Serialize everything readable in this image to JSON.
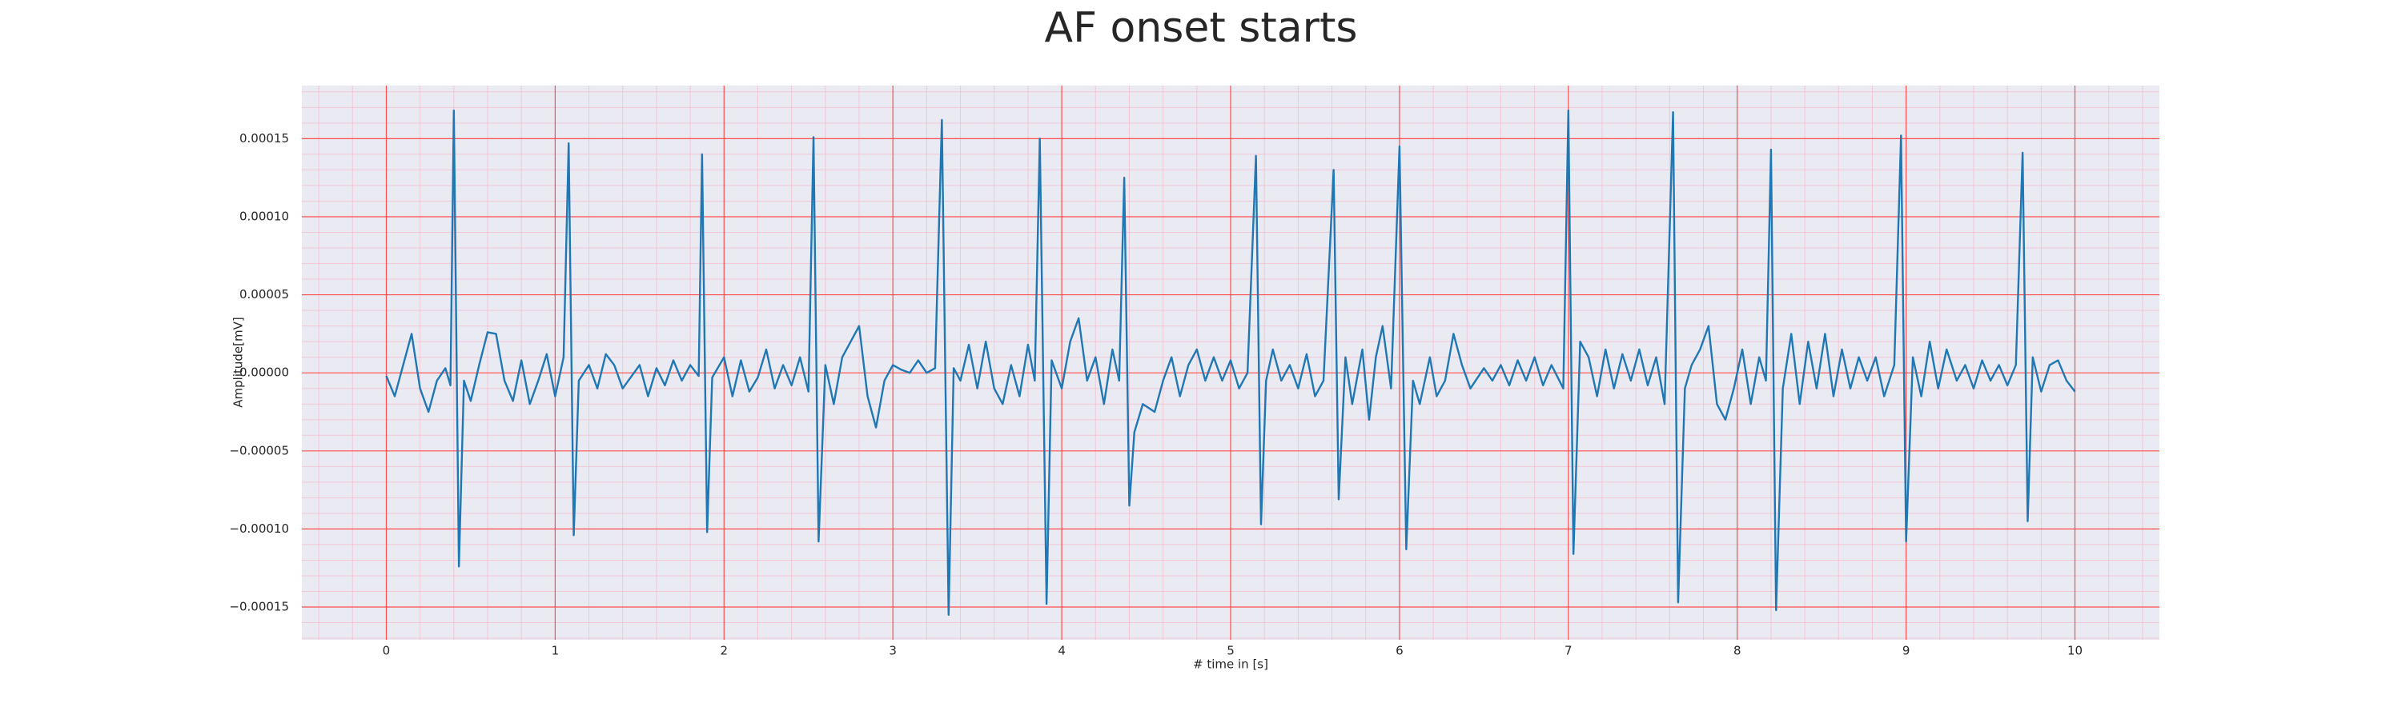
{
  "chart_data": {
    "type": "line",
    "title": "AF onset starts",
    "x_label": "# time in [s]",
    "y_label": "Amplitude[mV]",
    "color": "#1f77b4",
    "background": "#eaeaf2",
    "grid": true,
    "grid_color": "#ff4d4d",
    "minor_grid": true,
    "minor_grid_color": "#f5b8c8",
    "xlim": [
      -0.5,
      10.5
    ],
    "ylim": [
      -0.000171,
      0.000184
    ],
    "xticks": [
      0,
      1,
      2,
      3,
      4,
      5,
      6,
      7,
      8,
      9,
      10
    ],
    "yticks": [
      {
        "value": -0.00015,
        "label": "−0.00015"
      },
      {
        "value": -0.0001,
        "label": "−0.00010"
      },
      {
        "value": -5e-05,
        "label": "−0.00005"
      },
      {
        "value": 0,
        "label": "0.00000"
      },
      {
        "value": 5e-05,
        "label": "0.00005"
      },
      {
        "value": 0.0001,
        "label": "0.00010"
      },
      {
        "value": 0.00015,
        "label": "0.00015"
      }
    ],
    "x": [
      0,
      0.05,
      0.1,
      0.15,
      0.2,
      0.25,
      0.3,
      0.35,
      0.38,
      0.4,
      0.43,
      0.46,
      0.5,
      0.55,
      0.6,
      0.65,
      0.7,
      0.75,
      0.8,
      0.85,
      0.9,
      0.95,
      1.0,
      1.05,
      1.08,
      1.11,
      1.14,
      1.2,
      1.25,
      1.3,
      1.35,
      1.4,
      1.5,
      1.55,
      1.6,
      1.65,
      1.7,
      1.75,
      1.8,
      1.85,
      1.87,
      1.9,
      1.93,
      2.0,
      2.05,
      2.1,
      2.15,
      2.2,
      2.25,
      2.3,
      2.35,
      2.4,
      2.45,
      2.5,
      2.53,
      2.56,
      2.6,
      2.65,
      2.7,
      2.75,
      2.8,
      2.85,
      2.9,
      2.95,
      3.0,
      3.05,
      3.1,
      3.15,
      3.2,
      3.25,
      3.29,
      3.33,
      3.36,
      3.4,
      3.45,
      3.5,
      3.55,
      3.6,
      3.65,
      3.7,
      3.75,
      3.8,
      3.84,
      3.87,
      3.91,
      3.94,
      4.0,
      4.05,
      4.1,
      4.15,
      4.2,
      4.25,
      4.3,
      4.34,
      4.37,
      4.4,
      4.43,
      4.48,
      4.55,
      4.6,
      4.65,
      4.7,
      4.75,
      4.8,
      4.85,
      4.9,
      4.95,
      5.0,
      5.05,
      5.1,
      5.15,
      5.18,
      5.21,
      5.25,
      5.3,
      5.35,
      5.4,
      5.45,
      5.5,
      5.55,
      5.61,
      5.64,
      5.68,
      5.72,
      5.78,
      5.82,
      5.86,
      5.9,
      5.95,
      6.0,
      6.04,
      6.08,
      6.12,
      6.18,
      6.22,
      6.27,
      6.32,
      6.37,
      6.42,
      6.5,
      6.55,
      6.6,
      6.65,
      6.7,
      6.75,
      6.8,
      6.85,
      6.9,
      6.97,
      7.0,
      7.03,
      7.07,
      7.12,
      7.17,
      7.22,
      7.27,
      7.32,
      7.37,
      7.42,
      7.47,
      7.52,
      7.57,
      7.62,
      7.65,
      7.69,
      7.73,
      7.78,
      7.83,
      7.88,
      7.93,
      7.98,
      8.03,
      8.08,
      8.13,
      8.17,
      8.2,
      8.23,
      8.27,
      8.32,
      8.37,
      8.42,
      8.47,
      8.52,
      8.57,
      8.62,
      8.67,
      8.72,
      8.77,
      8.82,
      8.87,
      8.93,
      8.97,
      9.0,
      9.04,
      9.09,
      9.14,
      9.19,
      9.24,
      9.3,
      9.35,
      9.4,
      9.45,
      9.5,
      9.55,
      9.6,
      9.65,
      9.69,
      9.72,
      9.75,
      9.8,
      9.85,
      9.9,
      9.95,
      10.0
    ],
    "values": [
      -2e-06,
      -1.5e-05,
      5e-06,
      2.5e-05,
      -1e-05,
      -2.5e-05,
      -5e-06,
      3e-06,
      -8e-06,
      0.000168,
      -0.000124,
      -5e-06,
      -1.8e-05,
      5e-06,
      2.6e-05,
      2.5e-05,
      -5e-06,
      -1.8e-05,
      8e-06,
      -2e-05,
      -5e-06,
      1.2e-05,
      -1.5e-05,
      1e-05,
      0.000147,
      -0.000104,
      -5e-06,
      5e-06,
      -1e-05,
      1.2e-05,
      5e-06,
      -1e-05,
      5e-06,
      -1.5e-05,
      3e-06,
      -8e-06,
      8e-06,
      -5e-06,
      5e-06,
      -2e-06,
      0.00014,
      -0.000102,
      -3e-06,
      1e-05,
      -1.5e-05,
      8e-06,
      -1.2e-05,
      -3e-06,
      1.5e-05,
      -1e-05,
      5e-06,
      -8e-06,
      1e-05,
      -1.2e-05,
      0.000151,
      -0.000108,
      5e-06,
      -2e-05,
      1e-05,
      2e-05,
      3e-05,
      -1.5e-05,
      -3.5e-05,
      -5e-06,
      5e-06,
      2e-06,
      0,
      8e-06,
      0,
      3e-06,
      0.000162,
      -0.000155,
      3e-06,
      -5e-06,
      1.8e-05,
      -1e-05,
      2e-05,
      -1e-05,
      -2e-05,
      5e-06,
      -1.5e-05,
      1.8e-05,
      -5e-06,
      0.00015,
      -0.000148,
      8e-06,
      -1e-05,
      2e-05,
      3.5e-05,
      -5e-06,
      1e-05,
      -2e-05,
      1.5e-05,
      -5e-06,
      0.000125,
      -8.5e-05,
      -3.8e-05,
      -2e-05,
      -2.5e-05,
      -5e-06,
      1e-05,
      -1.5e-05,
      5e-06,
      1.5e-05,
      -5e-06,
      1e-05,
      -5e-06,
      8e-06,
      -1e-05,
      0,
      0.000139,
      -9.7e-05,
      -5e-06,
      1.5e-05,
      -5e-06,
      5e-06,
      -1e-05,
      1.2e-05,
      -1.5e-05,
      -5e-06,
      0.00013,
      -8.1e-05,
      1e-05,
      -2e-05,
      1.5e-05,
      -3e-05,
      1e-05,
      3e-05,
      -1e-05,
      0.000145,
      -0.000113,
      -5e-06,
      -2e-05,
      1e-05,
      -1.5e-05,
      -5e-06,
      2.5e-05,
      5e-06,
      -1e-05,
      3e-06,
      -5e-06,
      5e-06,
      -8e-06,
      8e-06,
      -5e-06,
      1e-05,
      -8e-06,
      5e-06,
      -1e-05,
      0.000168,
      -0.000116,
      2e-05,
      1e-05,
      -1.5e-05,
      1.5e-05,
      -1e-05,
      1.2e-05,
      -5e-06,
      1.5e-05,
      -8e-06,
      1e-05,
      -2e-05,
      0.000167,
      -0.000147,
      -1e-05,
      5e-06,
      1.5e-05,
      3e-05,
      -2e-05,
      -3e-05,
      -1e-05,
      1.5e-05,
      -2e-05,
      1e-05,
      -5e-06,
      0.000143,
      -0.000152,
      -1e-05,
      2.5e-05,
      -2e-05,
      2e-05,
      -1e-05,
      2.5e-05,
      -1.5e-05,
      1.5e-05,
      -1e-05,
      1e-05,
      -5e-06,
      1e-05,
      -1.5e-05,
      5e-06,
      0.000152,
      -0.000108,
      1e-05,
      -1.5e-05,
      2e-05,
      -1e-05,
      1.5e-05,
      -5e-06,
      5e-06,
      -1e-05,
      8e-06,
      -5e-06,
      5e-06,
      -8e-06,
      5e-06,
      0.000141,
      -9.5e-05,
      1e-05,
      -1.2e-05,
      5e-06,
      8e-06,
      -5e-06,
      -1.2e-05
    ]
  }
}
